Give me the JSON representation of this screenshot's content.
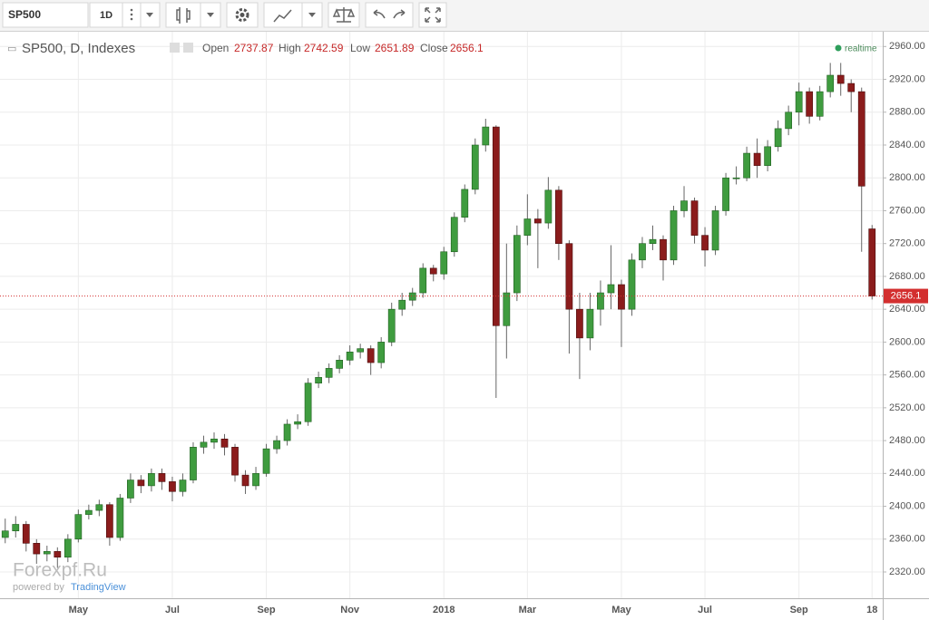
{
  "toolbar": {
    "symbol": "SP500",
    "interval": "1D"
  },
  "watermark": {
    "brand": "Forexpf.Ru",
    "powered_by": "powered by",
    "provider": "TradingView"
  },
  "chart_data": {
    "type": "candlestick",
    "title": "SP500, D, Indexes",
    "ohlc_labels": [
      "Open",
      "High",
      "Low",
      "Close"
    ],
    "status": "realtime",
    "up_color": "#3f9c3f",
    "down_color": "#8b1c1c",
    "price_line_color": "#d32f2f",
    "grid": true,
    "ylim": [
      2288,
      2978
    ],
    "yticks": [
      {
        "value": 2320,
        "label": "2320.00"
      },
      {
        "value": 2360,
        "label": "2360.00"
      },
      {
        "value": 2400,
        "label": "2400.00"
      },
      {
        "value": 2440,
        "label": "2440.00"
      },
      {
        "value": 2480,
        "label": "2480.00"
      },
      {
        "value": 2520,
        "label": "2520.00"
      },
      {
        "value": 2560,
        "label": "2560.00"
      },
      {
        "value": 2600,
        "label": "2600.00"
      },
      {
        "value": 2640,
        "label": "2640.00"
      },
      {
        "value": 2680,
        "label": "2680.00"
      },
      {
        "value": 2720,
        "label": "2720.00"
      },
      {
        "value": 2760,
        "label": "2760.00"
      },
      {
        "value": 2800,
        "label": "2800.00"
      },
      {
        "value": 2840,
        "label": "2840.00"
      },
      {
        "value": 2880,
        "label": "2880.00"
      },
      {
        "value": 2920,
        "label": "2920.00"
      },
      {
        "value": 2960,
        "label": "2960.00"
      }
    ],
    "categories": [
      null,
      null,
      null,
      null,
      null,
      null,
      null,
      "May",
      null,
      null,
      null,
      null,
      null,
      null,
      null,
      null,
      "Jul",
      null,
      null,
      null,
      null,
      null,
      null,
      null,
      null,
      "Sep",
      null,
      null,
      null,
      null,
      null,
      null,
      null,
      "Nov",
      null,
      null,
      null,
      null,
      null,
      null,
      null,
      null,
      "2018",
      null,
      null,
      null,
      null,
      null,
      null,
      null,
      "Mar",
      null,
      null,
      null,
      null,
      null,
      null,
      null,
      null,
      "May",
      null,
      null,
      null,
      null,
      null,
      null,
      null,
      "Jul",
      null,
      null,
      null,
      null,
      null,
      null,
      null,
      null,
      "Sep",
      null,
      null,
      null,
      null,
      null,
      null,
      "18"
    ],
    "open": [
      2362,
      2370,
      2378,
      2355,
      2342,
      2345,
      2338,
      2360,
      2390,
      2395,
      2402,
      2362,
      2410,
      2432,
      2425,
      2440,
      2430,
      2418,
      2432,
      2472,
      2478,
      2482,
      2472,
      2438,
      2425,
      2440,
      2470,
      2480,
      2500,
      2503,
      2550,
      2557,
      2568,
      2578,
      2588,
      2592,
      2575,
      2600,
      2640,
      2651,
      2660,
      2690,
      2683,
      2710,
      2752,
      2786,
      2840,
      2862,
      2620,
      2660,
      2730,
      2750,
      2745,
      2785,
      2720,
      2640,
      2605,
      2640,
      2660,
      2670,
      2640,
      2700,
      2720,
      2725,
      2700,
      2760,
      2772,
      2730,
      2712,
      2760,
      2800,
      2800,
      2830,
      2815,
      2838,
      2860,
      2880,
      2905,
      2875,
      2905,
      2925,
      2915,
      2905,
      2737.87
    ],
    "high": [
      2385,
      2388,
      2382,
      2360,
      2352,
      2350,
      2366,
      2396,
      2402,
      2408,
      2405,
      2415,
      2440,
      2438,
      2446,
      2446,
      2436,
      2440,
      2478,
      2486,
      2490,
      2488,
      2476,
      2444,
      2448,
      2476,
      2486,
      2506,
      2512,
      2556,
      2564,
      2574,
      2584,
      2596,
      2598,
      2596,
      2606,
      2648,
      2660,
      2666,
      2696,
      2694,
      2716,
      2758,
      2792,
      2848,
      2872,
      2864,
      2720,
      2742,
      2780,
      2762,
      2801,
      2790,
      2724,
      2660,
      2660,
      2675,
      2718,
      2676,
      2708,
      2728,
      2742,
      2730,
      2766,
      2790,
      2776,
      2740,
      2766,
      2806,
      2814,
      2838,
      2848,
      2846,
      2870,
      2888,
      2916,
      2910,
      2912,
      2940,
      2940,
      2920,
      2910,
      2742.59
    ],
    "low": [
      2355,
      2362,
      2345,
      2330,
      2333,
      2325,
      2332,
      2356,
      2384,
      2388,
      2352,
      2358,
      2404,
      2416,
      2418,
      2420,
      2406,
      2412,
      2428,
      2464,
      2470,
      2462,
      2430,
      2415,
      2420,
      2436,
      2464,
      2474,
      2494,
      2498,
      2544,
      2550,
      2562,
      2572,
      2580,
      2560,
      2568,
      2595,
      2632,
      2644,
      2654,
      2674,
      2676,
      2704,
      2746,
      2780,
      2832,
      2532,
      2580,
      2650,
      2718,
      2690,
      2738,
      2700,
      2586,
      2555,
      2590,
      2620,
      2640,
      2594,
      2632,
      2690,
      2712,
      2675,
      2694,
      2752,
      2720,
      2692,
      2706,
      2754,
      2792,
      2796,
      2800,
      2808,
      2832,
      2852,
      2864,
      2866,
      2870,
      2898,
      2900,
      2880,
      2710,
      2651.89
    ],
    "close": [
      2370,
      2378,
      2355,
      2342,
      2345,
      2338,
      2360,
      2390,
      2395,
      2402,
      2362,
      2410,
      2432,
      2425,
      2440,
      2430,
      2418,
      2432,
      2472,
      2478,
      2482,
      2472,
      2438,
      2425,
      2440,
      2470,
      2480,
      2500,
      2503,
      2550,
      2557,
      2568,
      2578,
      2588,
      2592,
      2575,
      2600,
      2640,
      2651,
      2660,
      2690,
      2683,
      2710,
      2752,
      2786,
      2840,
      2862,
      2620,
      2660,
      2730,
      2750,
      2745,
      2785,
      2720,
      2640,
      2605,
      2640,
      2660,
      2670,
      2640,
      2700,
      2720,
      2725,
      2700,
      2760,
      2772,
      2730,
      2712,
      2760,
      2800,
      2800,
      2830,
      2815,
      2838,
      2860,
      2880,
      2905,
      2875,
      2905,
      2925,
      2915,
      2905,
      2790,
      2656.1
    ]
  }
}
